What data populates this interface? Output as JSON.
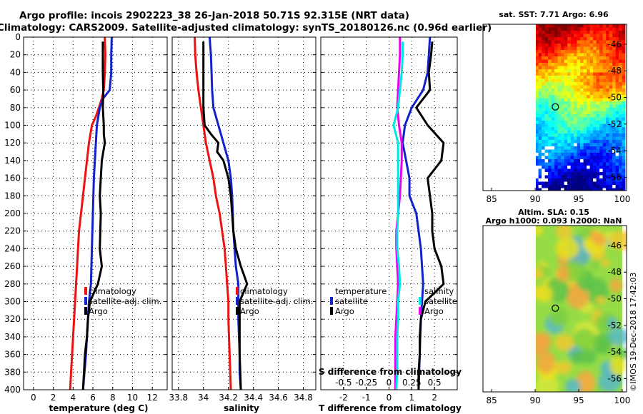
{
  "header": {
    "title_line1": "Argo profile: incois 2902223_38 26-Jan-2018 50.71S 92.315E (NRT data)",
    "title_line2": "Climatology: CARS2009. Satellite-adjusted climatology: synTS_20180126.nc (0.96d earlier)"
  },
  "credit": "©IMOS 19-Dec-2018 17:42:03",
  "colors": {
    "climatology": "#ee1111",
    "satellite": "#1122cc",
    "argo": "#000000",
    "salinity_diff": "#00e5e5",
    "satellite_s_diff": "#ee00ee"
  },
  "chart_data": [
    {
      "type": "line",
      "name": "temperature-profile",
      "xlabel": "temperature (deg C)",
      "ylabel": "depth",
      "xlim": [
        -1,
        13.5
      ],
      "ylim": [
        400,
        0
      ],
      "xticks": [
        0,
        2,
        4,
        6,
        8,
        10,
        12
      ],
      "yticks": [
        0,
        20,
        40,
        60,
        80,
        100,
        120,
        140,
        160,
        180,
        200,
        220,
        240,
        260,
        280,
        300,
        320,
        340,
        360,
        380,
        400
      ],
      "grid": true,
      "legend": [
        "climatology",
        "satellite-adj. clim.",
        "Argo"
      ],
      "series": [
        {
          "name": "climatology",
          "color_key": "climatology",
          "depth": [
            0,
            20,
            40,
            60,
            70,
            80,
            90,
            100,
            120,
            140,
            160,
            180,
            200,
            220,
            240,
            260,
            280,
            300,
            320,
            340,
            360,
            380,
            400
          ],
          "values": [
            7.2,
            7.25,
            7.2,
            7.1,
            6.9,
            6.6,
            6.3,
            5.9,
            5.6,
            5.4,
            5.2,
            5.0,
            4.8,
            4.6,
            4.5,
            4.4,
            4.3,
            4.2,
            4.1,
            4.0,
            3.9,
            3.8,
            3.7
          ]
        },
        {
          "name": "satellite-adj. clim.",
          "color_key": "satellite",
          "depth": [
            0,
            20,
            40,
            60,
            70,
            80,
            100,
            120,
            140,
            160,
            200,
            240,
            280,
            300,
            320,
            360,
            400
          ],
          "values": [
            7.9,
            7.85,
            7.85,
            7.7,
            7.0,
            6.7,
            6.4,
            6.3,
            6.2,
            6.1,
            6.0,
            5.9,
            5.8,
            5.6,
            5.5,
            5.3,
            5.0
          ]
        },
        {
          "name": "Argo",
          "color_key": "argo",
          "depth": [
            5,
            20,
            40,
            60,
            80,
            100,
            110,
            120,
            140,
            160,
            180,
            200,
            220,
            240,
            260,
            280,
            300,
            320,
            340,
            360,
            380,
            400
          ],
          "values": [
            7.0,
            7.0,
            7.0,
            7.05,
            7.0,
            7.1,
            7.1,
            7.2,
            6.9,
            6.8,
            6.7,
            6.8,
            6.75,
            6.7,
            6.9,
            6.5,
            5.7,
            5.5,
            5.4,
            5.2,
            5.1,
            5.0
          ]
        }
      ]
    },
    {
      "type": "line",
      "name": "salinity-profile",
      "xlabel": "salinity",
      "ylabel": "depth",
      "xlim": [
        33.75,
        34.9
      ],
      "ylim": [
        400,
        0
      ],
      "xticks": [
        33.8,
        34.0,
        34.2,
        34.4,
        34.6,
        34.8
      ],
      "xticklabels": [
        "33.8",
        "34",
        "34.2",
        "34.4",
        "34.6",
        "34.8"
      ],
      "grid": true,
      "legend": [
        "climatology",
        "satellite-adj. clim.",
        "Argo"
      ],
      "series": [
        {
          "name": "climatology",
          "color_key": "climatology",
          "depth": [
            0,
            20,
            40,
            60,
            80,
            100,
            120,
            140,
            160,
            180,
            200,
            220,
            240,
            260,
            280,
            300,
            320,
            340,
            360,
            380,
            400
          ],
          "values": [
            33.93,
            33.935,
            33.945,
            33.96,
            33.98,
            34.0,
            34.02,
            34.05,
            34.08,
            34.1,
            34.13,
            34.15,
            34.17,
            34.18,
            34.19,
            34.2,
            34.2,
            34.205,
            34.21,
            34.215,
            34.22
          ]
        },
        {
          "name": "satellite-adj. clim.",
          "color_key": "satellite",
          "depth": [
            0,
            20,
            40,
            60,
            80,
            100,
            120,
            140,
            160,
            180,
            200,
            220,
            240,
            260,
            280,
            300,
            320,
            340,
            360,
            380,
            400
          ],
          "values": [
            34.05,
            34.06,
            34.065,
            34.07,
            34.08,
            34.12,
            34.16,
            34.2,
            34.22,
            34.23,
            34.235,
            34.24,
            34.25,
            34.26,
            34.28,
            34.28,
            34.28,
            34.285,
            34.29,
            34.29,
            34.3
          ]
        },
        {
          "name": "Argo",
          "color_key": "argo",
          "depth": [
            5,
            20,
            40,
            60,
            80,
            100,
            110,
            120,
            130,
            140,
            160,
            180,
            200,
            220,
            240,
            260,
            280,
            290,
            300,
            320,
            340,
            360,
            380,
            400
          ],
          "values": [
            34.0,
            34.0,
            34.0,
            34.0,
            34.0,
            34.01,
            34.06,
            34.12,
            34.11,
            34.16,
            34.2,
            34.22,
            34.23,
            34.24,
            34.26,
            34.3,
            34.35,
            34.32,
            34.29,
            34.29,
            34.29,
            34.29,
            34.295,
            34.3
          ]
        }
      ]
    },
    {
      "type": "line",
      "name": "difference-profile",
      "xlabel": "T difference from climatology",
      "x2label": "S difference from climatology",
      "ylabel": "depth",
      "xlim": [
        -3.0,
        3.0
      ],
      "ylim": [
        400,
        0
      ],
      "xticks": [
        -2,
        -1,
        0,
        1,
        2
      ],
      "x2lim": [
        -0.75,
        0.75
      ],
      "x2ticks": [
        -0.5,
        -0.25,
        0,
        0.25,
        0.5
      ],
      "x2ticklabels": [
        "-0.5",
        "-0.25",
        "0",
        "0.25",
        "0.5"
      ],
      "grid": true,
      "legend_left": [
        "temperature",
        "satellite",
        "Argo"
      ],
      "legend_right": [
        "salinity",
        "satellite",
        "Argo"
      ],
      "series": [
        {
          "name": "T satellite",
          "axis": "T",
          "color_key": "satellite",
          "depth": [
            0,
            20,
            40,
            60,
            80,
            100,
            120,
            140,
            160,
            180,
            200,
            240,
            280,
            320,
            360,
            400
          ],
          "values": [
            1.8,
            1.75,
            1.7,
            1.5,
            1.0,
            0.7,
            0.6,
            0.75,
            0.9,
            0.9,
            1.2,
            1.4,
            1.5,
            1.4,
            1.35,
            1.3
          ]
        },
        {
          "name": "T Argo",
          "axis": "T",
          "color_key": "argo",
          "depth": [
            5,
            20,
            40,
            60,
            80,
            100,
            120,
            140,
            160,
            180,
            200,
            220,
            240,
            260,
            280,
            300,
            320,
            340,
            360,
            380,
            400
          ],
          "values": [
            1.9,
            1.85,
            1.75,
            1.8,
            1.2,
            1.7,
            2.4,
            2.3,
            1.7,
            1.8,
            1.9,
            1.9,
            2.0,
            2.3,
            2.4,
            1.6,
            1.4,
            1.35,
            1.35,
            1.3,
            1.3
          ]
        },
        {
          "name": "S satellite",
          "axis": "S",
          "color_key": "satellite_s_diff",
          "depth": [
            0,
            20,
            40,
            60,
            80,
            100,
            120,
            140,
            160,
            180,
            200,
            220,
            240,
            260,
            280,
            300,
            320,
            340,
            360,
            380,
            400
          ],
          "values": [
            0.12,
            0.12,
            0.11,
            0.1,
            0.09,
            0.11,
            0.14,
            0.14,
            0.13,
            0.12,
            0.1,
            0.08,
            0.08,
            0.09,
            0.1,
            0.09,
            0.08,
            0.07,
            0.07,
            0.07,
            0.07
          ]
        },
        {
          "name": "S Argo",
          "axis": "S",
          "color_key": "salinity_diff",
          "depth": [
            5,
            20,
            40,
            60,
            80,
            100,
            120,
            140,
            160,
            180,
            200,
            220,
            240,
            260,
            280,
            300,
            320,
            340,
            360,
            380,
            400
          ],
          "values": [
            0.15,
            0.15,
            0.14,
            0.12,
            0.1,
            0.05,
            0.1,
            0.1,
            0.1,
            0.1,
            0.1,
            0.09,
            0.09,
            0.11,
            0.12,
            0.1,
            0.1,
            0.09,
            0.09,
            0.09,
            0.08
          ]
        }
      ]
    },
    {
      "type": "heatmap",
      "name": "sst-map",
      "title": "sat. SST: 7.71 Argo: 6.96",
      "xlim": [
        84,
        100.5
      ],
      "ylim": [
        -57,
        -44.5
      ],
      "xticks": [
        85,
        90,
        95,
        100
      ],
      "yticks": [
        -46,
        -48,
        -50,
        -52,
        -54,
        -56
      ],
      "data_lon_range": [
        90,
        100
      ],
      "marker": {
        "lon": 92.315,
        "lat": -50.71
      }
    },
    {
      "type": "heatmap",
      "name": "sla-map",
      "title_line1": "Altim. SLA: 0.15",
      "title_line2": "Argo h1000: 0.093 h2000: NaN",
      "xlim": [
        84,
        100.5
      ],
      "ylim": [
        -57,
        -44.5
      ],
      "xticks": [
        85,
        90,
        95,
        100
      ],
      "yticks": [
        -46,
        -48,
        -50,
        -52,
        -54,
        -56
      ],
      "data_lon_range": [
        90,
        100
      ],
      "marker": {
        "lon": 92.315,
        "lat": -50.71
      }
    }
  ]
}
